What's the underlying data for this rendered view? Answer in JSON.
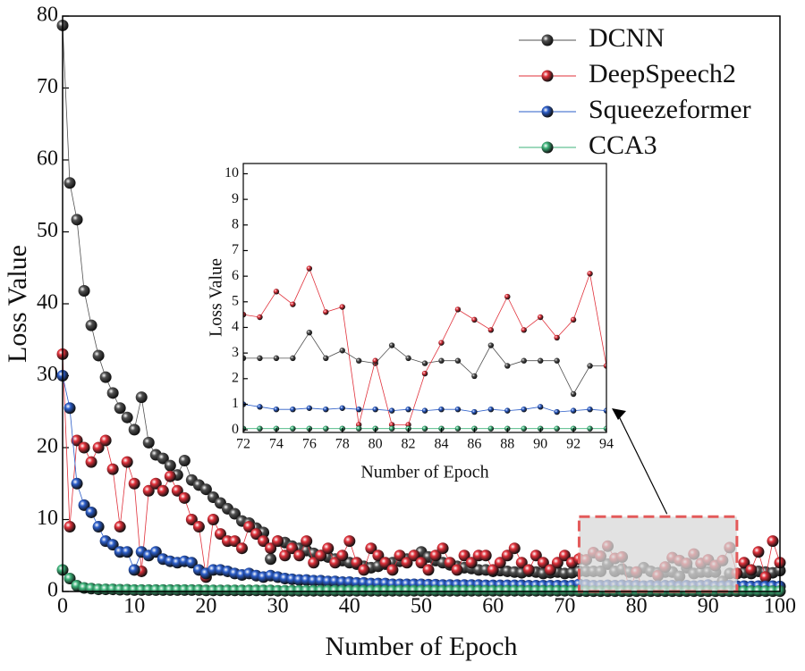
{
  "chart_data": [
    {
      "type": "line",
      "xlabel": "Number of Epoch",
      "ylabel": "Loss Value",
      "xlim": [
        0,
        100
      ],
      "ylim": [
        0,
        80
      ],
      "xticks": [
        0,
        10,
        20,
        30,
        40,
        50,
        60,
        70,
        80,
        90,
        100
      ],
      "yticks": [
        0,
        10,
        20,
        30,
        40,
        50,
        60,
        70,
        80
      ],
      "legend": "upper right",
      "x": [
        0,
        1,
        2,
        3,
        4,
        5,
        6,
        7,
        8,
        9,
        10,
        11,
        12,
        13,
        14,
        15,
        16,
        17,
        18,
        19,
        20,
        21,
        22,
        23,
        24,
        25,
        26,
        27,
        28,
        29,
        30,
        31,
        32,
        33,
        34,
        35,
        36,
        37,
        38,
        39,
        40,
        41,
        42,
        43,
        44,
        45,
        46,
        47,
        48,
        49,
        50,
        51,
        52,
        53,
        54,
        55,
        56,
        57,
        58,
        59,
        60,
        61,
        62,
        63,
        64,
        65,
        66,
        67,
        68,
        69,
        70,
        71,
        72,
        73,
        74,
        75,
        76,
        77,
        78,
        79,
        80,
        81,
        82,
        83,
        84,
        85,
        86,
        87,
        88,
        89,
        90,
        91,
        92,
        93,
        94,
        95,
        96,
        97,
        98,
        99,
        100
      ],
      "series": [
        {
          "name": "DCNN",
          "color": "#505050",
          "values": [
            78.7,
            56.8,
            51.7,
            41.8,
            37,
            32.8,
            29.8,
            27.6,
            25.5,
            24.2,
            22.5,
            27,
            20.7,
            19,
            18.5,
            17.5,
            16.2,
            18.2,
            15.5,
            14.8,
            14.2,
            13.1,
            12.3,
            11.5,
            10.8,
            9.8,
            9.5,
            8.8,
            8.2,
            4.5,
            7,
            6.8,
            6.3,
            6,
            5.7,
            5.3,
            5,
            4.8,
            4.5,
            4.3,
            4,
            3.8,
            3.5,
            3.3,
            3.5,
            3.8,
            4,
            4.2,
            4.5,
            5,
            5.5,
            4.8,
            4.3,
            4,
            3.7,
            3.5,
            3.3,
            3.2,
            3,
            3,
            2.8,
            2.9,
            2.8,
            2.7,
            2.6,
            2.8,
            2.7,
            2.5,
            2.6,
            2.7,
            2.5,
            2.6,
            2.8,
            2.8,
            2.8,
            2.8,
            3.8,
            2.8,
            3.1,
            2.7,
            2.6,
            3.3,
            2.8,
            2.6,
            2.7,
            2.7,
            2.1,
            3.3,
            2.5,
            2.7,
            2.7,
            2.7,
            1.4,
            2.5,
            2.5,
            2.6,
            2.5,
            2.8,
            2.7,
            2.6,
            2.9
          ]
        },
        {
          "name": "DeepSpeech2",
          "color": "#e0303a",
          "values": [
            33,
            9,
            21,
            20,
            18,
            20,
            21,
            17,
            9,
            18,
            15,
            2.8,
            14,
            15,
            14,
            16,
            14,
            13,
            10,
            9,
            2,
            10,
            8,
            7,
            7,
            6,
            9,
            8,
            7,
            6,
            7,
            5,
            6,
            5,
            7,
            4,
            5,
            6,
            4,
            5,
            7,
            4,
            3,
            6,
            5,
            4,
            3,
            5,
            4,
            5,
            4,
            3,
            5,
            6,
            4,
            3,
            5,
            4,
            5,
            5,
            3,
            4,
            5,
            6,
            4,
            3,
            5,
            4,
            3,
            4,
            5,
            4,
            4.5,
            4.4,
            5.4,
            4.9,
            6.3,
            4.6,
            4.8,
            0.2,
            2.7,
            0.2,
            0.2,
            2.2,
            3.4,
            4.7,
            4.3,
            3.9,
            5.2,
            3.9,
            4.4,
            3.6,
            4.3,
            6.1,
            2.5,
            4,
            3,
            5.5,
            2,
            7,
            4
          ]
        },
        {
          "name": "Squeezeformer",
          "color": "#2a5cc8",
          "values": [
            30,
            25.5,
            15,
            12,
            11,
            9,
            7,
            6.5,
            5.5,
            5.5,
            3,
            5.5,
            5,
            5.5,
            4.5,
            4.2,
            4,
            4.2,
            4,
            3,
            2.5,
            3,
            3,
            2.8,
            2.5,
            2.3,
            2.5,
            2.2,
            2,
            2.2,
            2,
            1.8,
            1.7,
            1.6,
            1.6,
            1.5,
            1.5,
            1.4,
            1.4,
            1.3,
            1.3,
            1.2,
            1.2,
            1.1,
            1.1,
            1.1,
            1,
            1,
            1,
            1,
            1,
            0.95,
            0.95,
            0.9,
            0.9,
            0.9,
            0.9,
            0.9,
            0.9,
            0.85,
            0.85,
            0.85,
            0.85,
            0.85,
            0.85,
            0.8,
            0.8,
            0.8,
            0.8,
            0.8,
            0.8,
            0.8,
            1,
            0.9,
            0.8,
            0.8,
            0.85,
            0.8,
            0.85,
            0.8,
            0.8,
            0.75,
            0.8,
            0.75,
            0.8,
            0.8,
            0.7,
            0.8,
            0.75,
            0.8,
            0.9,
            0.7,
            0.75,
            0.8,
            0.75,
            0.75,
            0.7,
            0.75,
            0.7,
            0.75,
            0.7
          ]
        },
        {
          "name": "CCA3",
          "color": "#3db37a",
          "values": [
            3,
            1.8,
            0.8,
            0.5,
            0.4,
            0.3,
            0.3,
            0.3,
            0.25,
            0.25,
            0.2,
            0.2,
            0.2,
            0.2,
            0.2,
            0.2,
            0.2,
            0.2,
            0.2,
            0.2,
            0.15,
            0.15,
            0.15,
            0.15,
            0.15,
            0.15,
            0.15,
            0.15,
            0.15,
            0.15,
            0.1,
            0.1,
            0.1,
            0.1,
            0.1,
            0.1,
            0.1,
            0.1,
            0.1,
            0.1,
            0.1,
            0.1,
            0.1,
            0.1,
            0.1,
            0.1,
            0.1,
            0.1,
            0.1,
            0.1,
            0.1,
            0.1,
            0.1,
            0.1,
            0.1,
            0.1,
            0.1,
            0.1,
            0.1,
            0.1,
            0.1,
            0.1,
            0.1,
            0.1,
            0.1,
            0.1,
            0.1,
            0.1,
            0.1,
            0.1,
            0.1,
            0.1,
            0.05,
            0.05,
            0.05,
            0.05,
            0.05,
            0.05,
            0.05,
            0.05,
            0.05,
            0.05,
            0.05,
            0.05,
            0.05,
            0.05,
            0.05,
            0.05,
            0.05,
            0.05,
            0.05,
            0.05,
            0.05,
            0.05,
            0.05,
            0.05,
            0.05,
            0.05,
            0.05,
            0.05,
            0.05
          ]
        }
      ]
    },
    {
      "type": "line",
      "xlabel": "Number of Epoch",
      "ylabel": "Loss Value",
      "xlim": [
        72,
        94
      ],
      "ylim": [
        -0.1,
        10.4
      ],
      "xticks": [
        72,
        74,
        76,
        78,
        80,
        82,
        84,
        86,
        88,
        90,
        92,
        94
      ],
      "yticks": [
        0,
        1,
        2,
        3,
        4,
        5,
        6,
        7,
        8,
        9,
        10
      ]
    }
  ]
}
